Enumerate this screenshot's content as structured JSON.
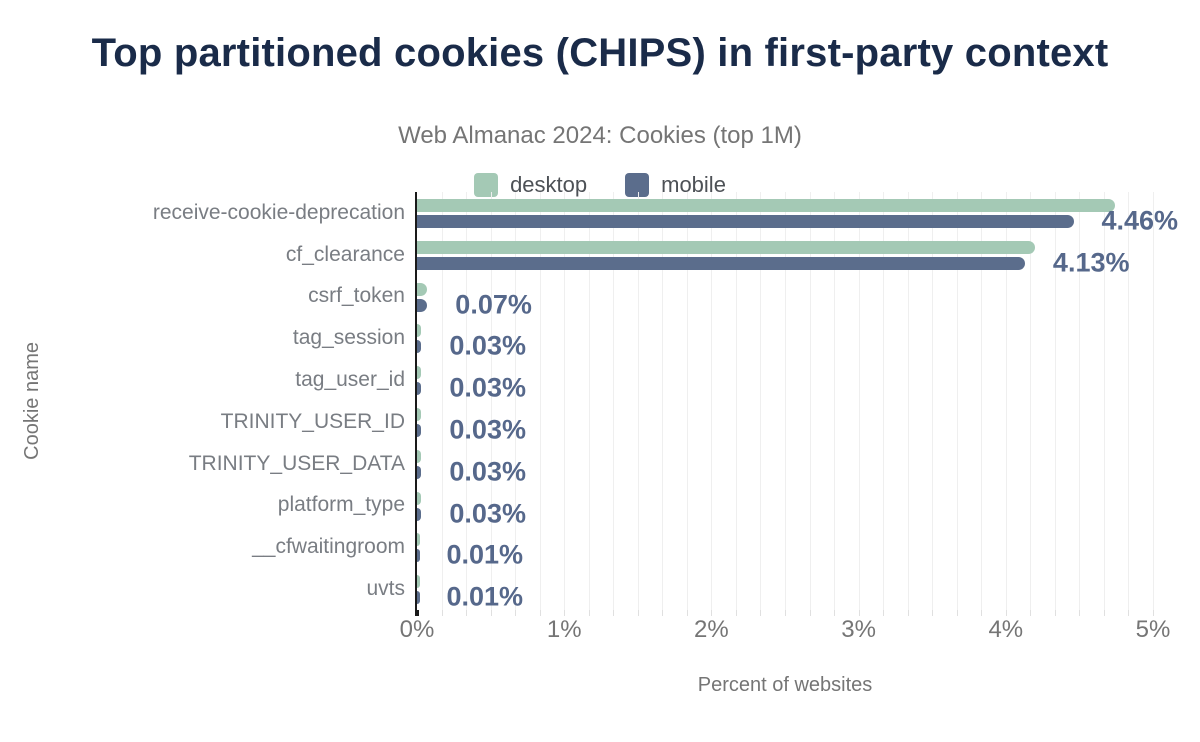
{
  "title": "Top partitioned cookies (CHIPS) in first-party context",
  "subtitle": "Web Almanac 2024: Cookies (top 1M)",
  "legend": {
    "desktop_label": "desktop",
    "mobile_label": "mobile"
  },
  "colors": {
    "desktop": "#a4c9b5",
    "mobile": "#5b6d8c",
    "value_label": "#56688b",
    "title": "#1a2b49",
    "axis_text": "#757575"
  },
  "chart_data": {
    "type": "bar",
    "orientation": "horizontal",
    "title": "Top partitioned cookies (CHIPS) in first-party context",
    "subtitle": "Web Almanac 2024: Cookies (top 1M)",
    "xlabel": "Percent of websites",
    "ylabel": "Cookie name",
    "xlim": [
      0,
      5
    ],
    "x_tick_labels": [
      "0%",
      "1%",
      "2%",
      "3%",
      "4%",
      "5%"
    ],
    "grid": "vertical minor gridlines, 6 per 1%",
    "legend_position": "top",
    "categories": [
      "receive-cookie-deprecation",
      "cf_clearance",
      "csrf_token",
      "tag_session",
      "tag_user_id",
      "TRINITY_USER_ID",
      "TRINITY_USER_DATA",
      "platform_type",
      "__cfwaitingroom",
      "uvts"
    ],
    "series": [
      {
        "name": "desktop",
        "color": "#a4c9b5",
        "values": [
          4.74,
          4.2,
          0.07,
          0.03,
          0.03,
          0.03,
          0.03,
          0.03,
          0.01,
          0.01
        ]
      },
      {
        "name": "mobile",
        "color": "#5b6d8c",
        "values": [
          4.46,
          4.13,
          0.07,
          0.03,
          0.03,
          0.03,
          0.03,
          0.03,
          0.01,
          0.01
        ]
      }
    ],
    "value_labels": [
      "4.46%",
      "4.13%",
      "0.07%",
      "0.03%",
      "0.03%",
      "0.03%",
      "0.03%",
      "0.03%",
      "0.01%",
      "0.01%"
    ]
  }
}
